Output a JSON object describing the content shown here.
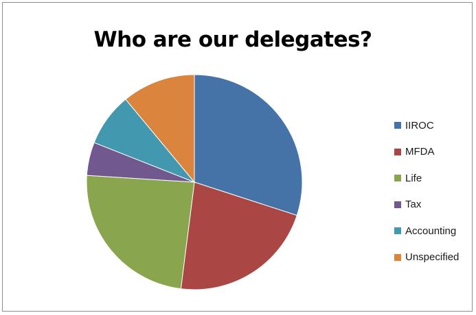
{
  "chart_data": {
    "type": "pie",
    "title": "Who are our delegates?",
    "categories": [
      "IIROC",
      "MFDA",
      "Life",
      "Tax",
      "Accounting",
      "Unspecified"
    ],
    "values": [
      30,
      22,
      24,
      5,
      8,
      11
    ],
    "colors": [
      "#4572A7",
      "#AA4643",
      "#89A54E",
      "#71588F",
      "#4198AF",
      "#DB843D"
    ],
    "legend_position": "right",
    "start_angle": "12 o'clock",
    "direction": "clockwise"
  }
}
